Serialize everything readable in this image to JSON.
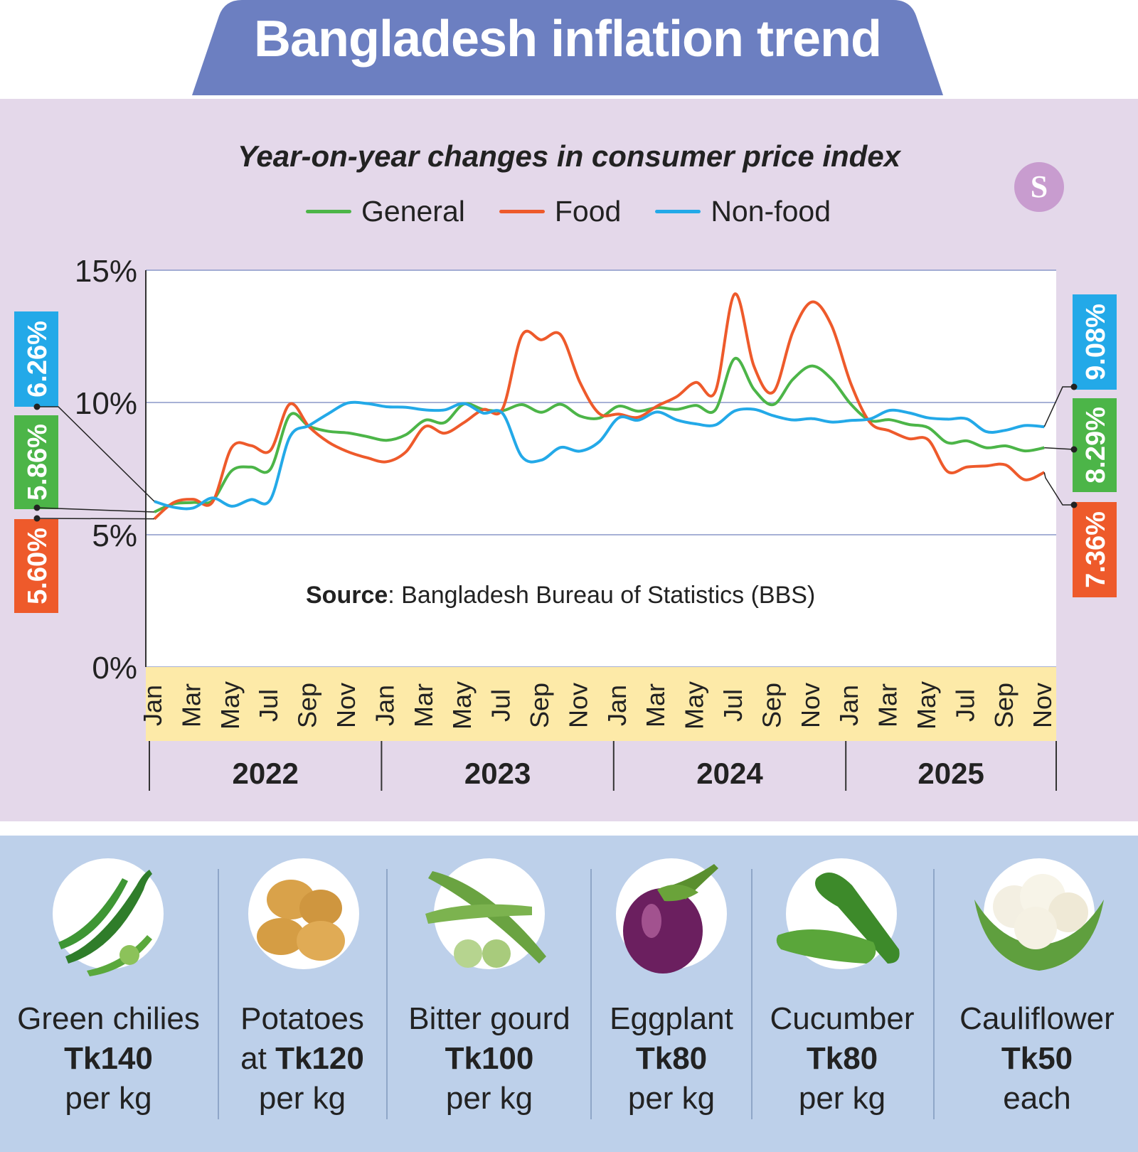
{
  "header": {
    "title": "Bangladesh inflation trend"
  },
  "subtitle": "Year-on-year changes in consumer price index",
  "brand": {
    "logo_letter": "S"
  },
  "legend": [
    {
      "label": "General",
      "color": "#4cb548"
    },
    {
      "label": "Food",
      "color": "#ee5a2b"
    },
    {
      "label": "Non-food",
      "color": "#23a9e8"
    }
  ],
  "source": {
    "label": "Source",
    "text": ": Bangladesh Bureau of Statistics (BBS)"
  },
  "chart_data": {
    "type": "line",
    "title": "Year-on-year changes in consumer price index",
    "ylim": [
      0,
      15
    ],
    "ytick_labels": [
      "0%",
      "5%",
      "10%",
      "15%"
    ],
    "yticks": [
      0,
      5,
      10,
      15
    ],
    "grid": true,
    "legend_position": "top-center",
    "x_month_labels": [
      "Jan",
      "Mar",
      "May",
      "Jul",
      "Sep",
      "Nov"
    ],
    "years": [
      "2022",
      "2023",
      "2024",
      "2025"
    ],
    "series": [
      {
        "name": "General",
        "color": "#4cb548",
        "values": [
          5.86,
          6.17,
          6.22,
          6.29,
          7.42,
          7.56,
          7.48,
          9.52,
          9.1,
          8.91,
          8.85,
          8.71,
          8.57,
          8.78,
          9.33,
          9.24,
          9.94,
          9.74,
          9.69,
          9.92,
          9.63,
          9.93,
          9.49,
          9.41,
          9.86,
          9.67,
          9.81,
          9.74,
          9.89,
          9.72,
          11.66,
          10.49,
          9.92,
          10.87,
          11.38,
          10.89,
          9.94,
          9.32,
          9.35,
          9.17,
          9.05,
          8.48,
          8.55,
          8.29,
          8.36,
          8.17,
          8.29
        ]
      },
      {
        "name": "Food",
        "color": "#ee5a2b",
        "values": [
          5.6,
          6.22,
          6.34,
          6.23,
          8.3,
          8.37,
          8.19,
          9.94,
          9.08,
          8.5,
          8.14,
          7.91,
          7.76,
          8.13,
          9.09,
          8.84,
          9.24,
          9.73,
          9.76,
          12.54,
          12.37,
          12.56,
          10.76,
          9.58,
          9.56,
          9.44,
          9.87,
          10.22,
          10.76,
          10.42,
          14.1,
          11.36,
          10.4,
          12.66,
          13.8,
          12.92,
          10.72,
          9.24,
          8.93,
          8.63,
          8.59,
          7.39,
          7.56,
          7.6,
          7.64,
          7.08,
          7.36
        ]
      },
      {
        "name": "Non-food",
        "color": "#23a9e8",
        "values": [
          6.26,
          6.04,
          6.01,
          6.39,
          6.08,
          6.33,
          6.33,
          8.69,
          9.13,
          9.58,
          9.98,
          9.96,
          9.84,
          9.82,
          9.72,
          9.72,
          9.96,
          9.6,
          9.59,
          7.95,
          7.82,
          8.3,
          8.16,
          8.52,
          9.42,
          9.33,
          9.64,
          9.34,
          9.19,
          9.15,
          9.68,
          9.74,
          9.5,
          9.34,
          9.39,
          9.26,
          9.32,
          9.38,
          9.7,
          9.61,
          9.42,
          9.37,
          9.38,
          8.9,
          8.95,
          9.13,
          9.08
        ]
      }
    ],
    "end_labels": {
      "start": [
        {
          "series": "Non-food",
          "text": "6.26%",
          "color": "#23a9e8"
        },
        {
          "series": "General",
          "text": "5.86%",
          "color": "#4cb548"
        },
        {
          "series": "Food",
          "text": "5.60%",
          "color": "#ee5a2b"
        }
      ],
      "end": [
        {
          "series": "Non-food",
          "text": "9.08%",
          "color": "#23a9e8"
        },
        {
          "series": "General",
          "text": "8.29%",
          "color": "#4cb548"
        },
        {
          "series": "Food",
          "text": "7.36%",
          "color": "#ee5a2b"
        }
      ]
    }
  },
  "vegetables": [
    {
      "name": "Green chilies",
      "prefix": "",
      "price": "Tk140",
      "unit": "per kg",
      "icon": "green-chili-icon"
    },
    {
      "name": "Potatoes",
      "prefix": "at ",
      "price": "Tk120",
      "unit": "per kg",
      "icon": "potato-icon"
    },
    {
      "name": "Bitter gourd",
      "prefix": "",
      "price": "Tk100",
      "unit": "per kg",
      "icon": "bitter-gourd-icon"
    },
    {
      "name": "Eggplant",
      "prefix": "",
      "price": "Tk80",
      "unit": "per kg",
      "icon": "eggplant-icon"
    },
    {
      "name": "Cucumber",
      "prefix": "",
      "price": "Tk80",
      "unit": "per kg",
      "icon": "cucumber-icon"
    },
    {
      "name": "Cauliflower",
      "prefix": "",
      "price": "Tk50",
      "unit": "each",
      "icon": "cauliflower-icon"
    }
  ]
}
